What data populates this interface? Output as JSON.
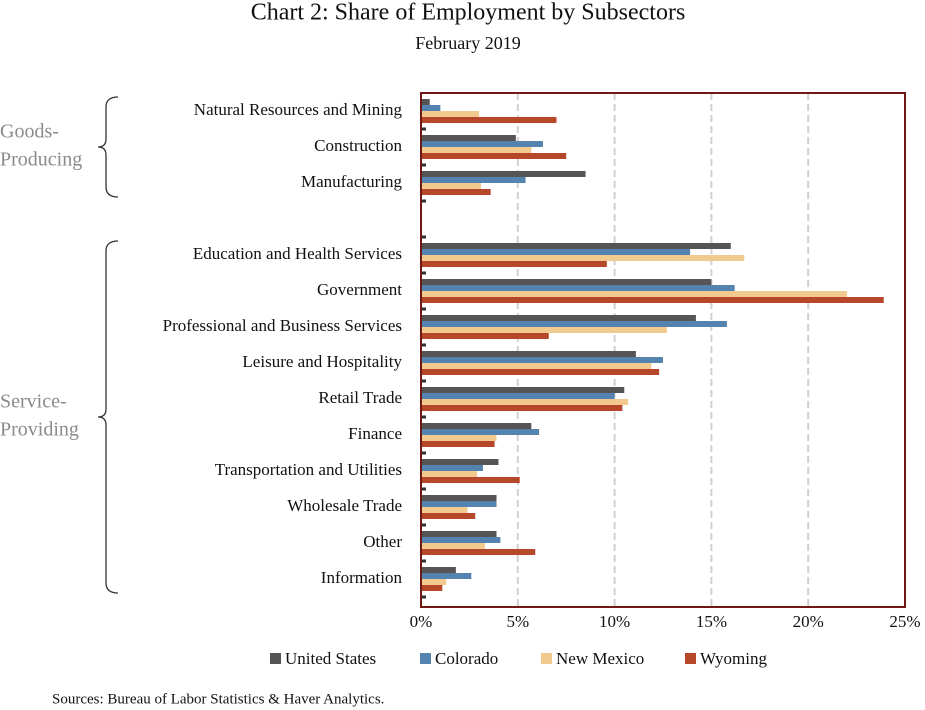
{
  "chart_data": {
    "type": "hbar",
    "title": "Chart 2: Share of Employment by Subsectors",
    "subtitle": "February 2019",
    "source": "Sources: Bureau of Labor Statistics & Haver Analytics.",
    "group_labels": [
      [
        "Goods-",
        "Producing"
      ],
      [
        "Service-",
        "Providing"
      ]
    ],
    "categories": [
      "Natural Resources and Mining",
      "Construction",
      "Manufacturing",
      null,
      "Education and Health Services",
      "Government",
      "Professional and Business Services",
      "Leisure and Hospitality",
      "Retail Trade",
      "Finance",
      "Transportation and Utilities",
      "Wholesale Trade",
      "Other",
      "Information"
    ],
    "series": [
      {
        "name": "United States",
        "color": "#555555",
        "values": [
          0.45,
          4.9,
          8.5,
          null,
          16.0,
          15.0,
          14.2,
          11.1,
          10.5,
          5.7,
          4.0,
          3.9,
          3.9,
          1.8
        ]
      },
      {
        "name": "Colorado",
        "color": "#5383ae",
        "values": [
          1.0,
          6.3,
          5.4,
          null,
          13.9,
          16.2,
          15.8,
          12.5,
          10.0,
          6.1,
          3.2,
          3.9,
          4.1,
          2.6
        ]
      },
      {
        "name": "New Mexico",
        "color": "#f2c98e",
        "values": [
          3.0,
          5.7,
          3.1,
          null,
          16.7,
          22.0,
          12.7,
          11.9,
          10.7,
          3.9,
          2.9,
          2.4,
          3.3,
          1.3
        ]
      },
      {
        "name": "Wyoming",
        "color": "#b7472a",
        "values": [
          7.0,
          7.5,
          3.6,
          null,
          9.6,
          23.9,
          6.6,
          12.3,
          10.4,
          3.8,
          5.1,
          2.8,
          5.9,
          1.1
        ]
      }
    ],
    "xlim": [
      0,
      25
    ],
    "xticks": [
      {
        "value": 0,
        "label": "0%"
      },
      {
        "value": 5,
        "label": "5%"
      },
      {
        "value": 10,
        "label": "10%"
      },
      {
        "value": 15,
        "label": "15%"
      },
      {
        "value": 20,
        "label": "20%"
      },
      {
        "value": 25,
        "label": "25%"
      }
    ],
    "grid": true,
    "legend": "bottom"
  }
}
